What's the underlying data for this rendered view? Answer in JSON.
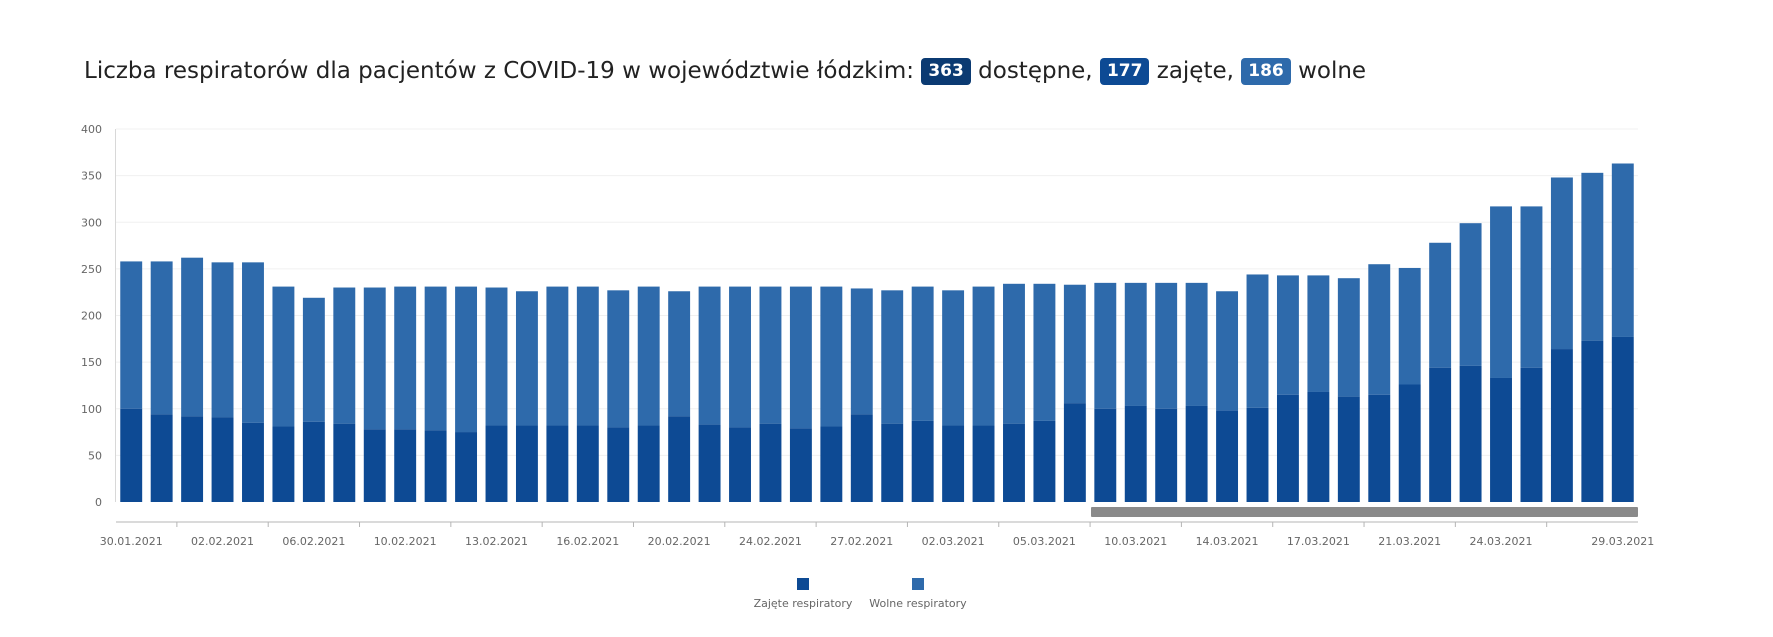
{
  "title": {
    "prefix": "Liczba respiratorów dla pacjentów z COVID-19 w województwie łódzkim:",
    "available_value": "363",
    "available_label": "dostępne,",
    "occupied_value": "177",
    "occupied_label": "zajęte,",
    "free_value": "186",
    "free_label": "wolne"
  },
  "colors": {
    "occupied": "#0d4a94",
    "free": "#2e6aab",
    "badge_available": "#0b3a72",
    "badge_occupied": "#0d4a94",
    "badge_free": "#2e6aab",
    "scrollbar": "#8a8a8a"
  },
  "chart_data": {
    "type": "bar",
    "stacked": true,
    "ylim": [
      0,
      400
    ],
    "yticks": [
      0,
      50,
      100,
      150,
      200,
      250,
      300,
      350,
      400
    ],
    "x_tick_labels": [
      "30.01.2021",
      "02.02.2021",
      "06.02.2021",
      "10.02.2021",
      "13.02.2021",
      "16.02.2021",
      "20.02.2021",
      "24.02.2021",
      "27.02.2021",
      "02.03.2021",
      "05.03.2021",
      "10.03.2021",
      "14.03.2021",
      "17.03.2021",
      "21.03.2021",
      "24.03.2021",
      "29.03.2021"
    ],
    "x_tick_label_indices": [
      0,
      3,
      6,
      9,
      12,
      15,
      18,
      21,
      24,
      27,
      30,
      33,
      36,
      39,
      42,
      45,
      49
    ],
    "series": [
      {
        "name": "Zajęte respiratory",
        "values": [
          100,
          94,
          92,
          91,
          85,
          81,
          86,
          84,
          78,
          78,
          77,
          75,
          82,
          82,
          82,
          82,
          80,
          82,
          92,
          83,
          80,
          84,
          79,
          81,
          94,
          84,
          87,
          82,
          82,
          84,
          87,
          106,
          100,
          103,
          100,
          103,
          98,
          101,
          115,
          118,
          113,
          115,
          126,
          144,
          146,
          133,
          144,
          164,
          173,
          177
        ]
      },
      {
        "name": "Wolne respiratory",
        "values": [
          158,
          164,
          170,
          166,
          172,
          150,
          133,
          146,
          152,
          153,
          154,
          156,
          148,
          144,
          149,
          149,
          147,
          149,
          134,
          148,
          151,
          147,
          152,
          150,
          135,
          143,
          144,
          145,
          149,
          150,
          147,
          127,
          135,
          132,
          135,
          132,
          128,
          143,
          128,
          125,
          127,
          140,
          125,
          134,
          153,
          184,
          173,
          184,
          180,
          186
        ]
      }
    ],
    "legend_position": "bottom-center",
    "grid": true
  }
}
